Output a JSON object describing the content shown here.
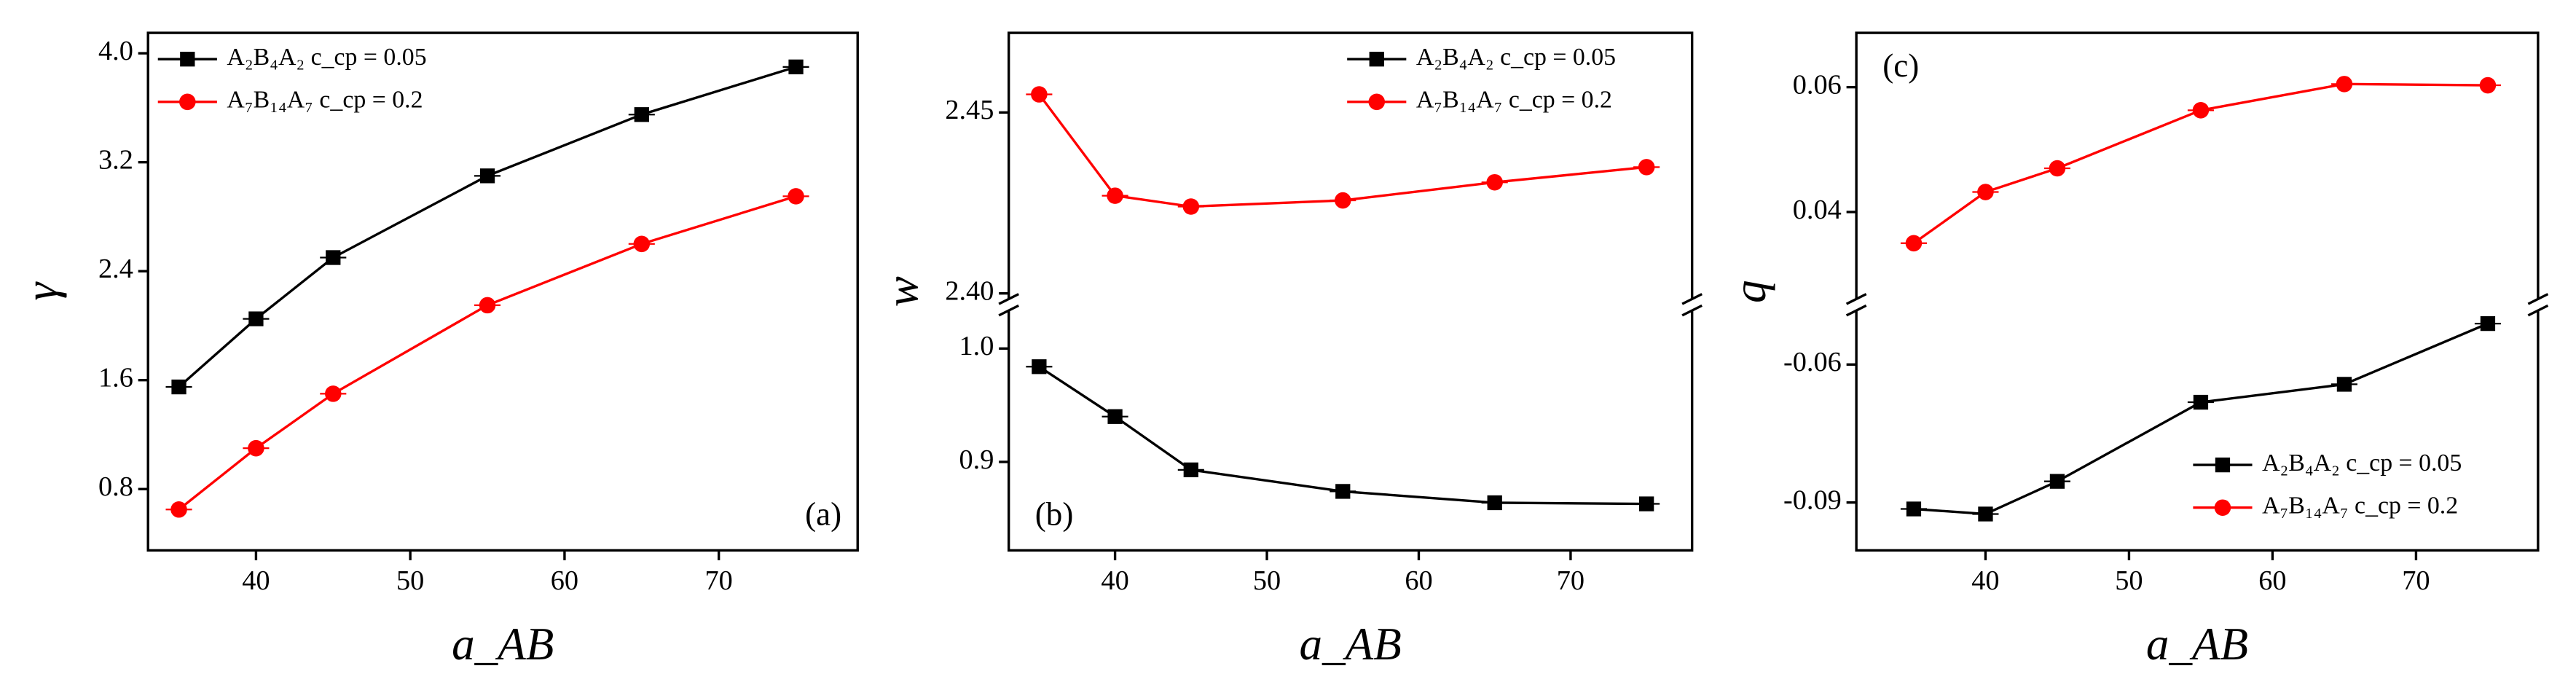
{
  "chart_data": [
    {
      "type": "line",
      "panel_label": "(a)",
      "panel_label_position": "lower right",
      "xlabel": "a_AB",
      "ylabel": "γ",
      "x": [
        35,
        40,
        45,
        55,
        65,
        75
      ],
      "xlim": [
        33,
        79
      ],
      "xticks": [
        40,
        50,
        60,
        70
      ],
      "ylim": [
        0.35,
        4.15
      ],
      "yticks": [
        0.8,
        1.6,
        2.4,
        3.2,
        {
          "value": 4.0,
          "label": "4.0"
        }
      ],
      "legend": "upper left",
      "series": [
        {
          "name": "A₂B₄A₂ c_cp = 0.05",
          "color": "#000000",
          "marker": "square",
          "values": [
            1.55,
            2.05,
            2.5,
            3.1,
            3.55,
            3.9
          ]
        },
        {
          "name": "A₇B₁₄A₇ c_cp = 0.2",
          "color": "#ff0000",
          "marker": "circle",
          "values": [
            0.65,
            1.1,
            1.5,
            2.15,
            2.6,
            2.95
          ]
        }
      ]
    },
    {
      "type": "line",
      "panel_label": "(b)",
      "panel_label_position": "lower left",
      "xlabel": "a_AB",
      "ylabel": "w",
      "axis_break": true,
      "x": [
        35,
        40,
        45,
        55,
        65,
        75
      ],
      "xlim": [
        33,
        78
      ],
      "xticks": [
        40,
        50,
        60,
        70
      ],
      "ylim": [
        [
          0.822,
          1.035
        ],
        [
          2.398,
          2.472
        ]
      ],
      "yticks": [
        [
          0.9,
          {
            "value": 1.0,
            "label": "1.0"
          }
        ],
        [
          {
            "value": 2.4,
            "label": "2.40"
          },
          2.45
        ]
      ],
      "legend": "upper right",
      "series": [
        {
          "name": "A₂B₄A₂ c_cp = 0.05",
          "color": "#000000",
          "marker": "square",
          "segment": 0,
          "values": [
            0.984,
            0.94,
            0.893,
            0.874,
            0.864,
            0.863
          ]
        },
        {
          "name": "A₇B₁₄A₇ c_cp = 0.2",
          "color": "#ff0000",
          "marker": "circle",
          "segment": 1,
          "values": [
            2.455,
            2.427,
            2.424,
            2.4257,
            2.4307,
            2.4349
          ]
        }
      ]
    },
    {
      "type": "line",
      "panel_label": "(c)",
      "panel_label_position": "upper left",
      "xlabel": "a_AB",
      "ylabel": "q",
      "axis_break": true,
      "x": [
        35,
        40,
        45,
        55,
        65,
        75
      ],
      "xlim": [
        31,
        78.5
      ],
      "xticks": [
        40,
        50,
        60,
        70
      ],
      "ylim": [
        [
          -0.1004,
          -0.0479
        ],
        [
          0.0258,
          0.0687
        ]
      ],
      "yticks": [
        [
          -0.09,
          -0.06
        ],
        [
          0.04,
          0.06
        ]
      ],
      "legend": "lower right",
      "series": [
        {
          "name": "A₂B₄A₂ c_cp = 0.05",
          "color": "#000000",
          "marker": "square",
          "segment": 0,
          "values": [
            -0.0914,
            -0.0925,
            -0.0854,
            -0.0682,
            -0.0643,
            -0.0511
          ]
        },
        {
          "name": "A₇B₁₄A₇ c_cp = 0.2",
          "color": "#ff0000",
          "marker": "circle",
          "segment": 1,
          "values": [
            0.035,
            0.0432,
            0.047,
            0.0563,
            0.0605,
            0.0603
          ]
        }
      ]
    }
  ]
}
